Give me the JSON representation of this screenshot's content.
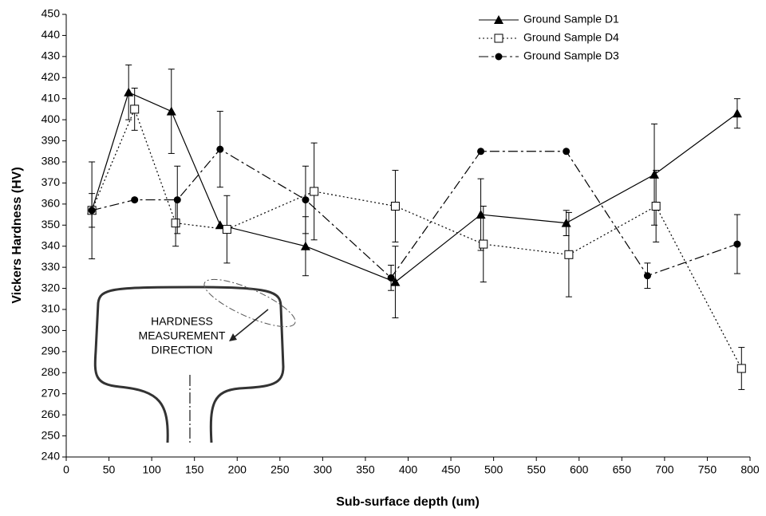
{
  "chart_data": {
    "type": "line",
    "xlabel": "Sub-surface depth (um)",
    "ylabel": "Vickers Hardness  (HV)",
    "xlim": [
      0,
      800
    ],
    "xticks": [
      0,
      50,
      100,
      150,
      200,
      250,
      300,
      350,
      400,
      450,
      500,
      550,
      600,
      650,
      700,
      750,
      800
    ],
    "ylim": [
      240,
      450
    ],
    "yticks": [
      240,
      250,
      260,
      270,
      280,
      290,
      300,
      310,
      320,
      330,
      340,
      350,
      360,
      370,
      380,
      390,
      400,
      410,
      420,
      430,
      440,
      450
    ],
    "annotation_lines": [
      "HARDNESS",
      "MEASUREMENT",
      "DIRECTION"
    ],
    "legend": "top-right",
    "series": [
      {
        "name": "Ground Sample D1",
        "color": "#000000",
        "marker": "triangle",
        "line_style": "solid",
        "x": [
          30,
          73,
          123,
          180,
          280,
          385,
          485,
          585,
          688,
          785
        ],
        "values": [
          357,
          413,
          404,
          350,
          340,
          323,
          355,
          351,
          374,
          403
        ],
        "errors": [
          null,
          13,
          20,
          null,
          14,
          17,
          17,
          6,
          24,
          7
        ]
      },
      {
        "name": "Ground Sample D4",
        "color": "#000000",
        "marker": "square",
        "line_style": "dotted",
        "x": [
          30,
          80,
          128,
          188,
          290,
          385,
          488,
          588,
          690,
          790
        ],
        "values": [
          357,
          405,
          351,
          348,
          366,
          359,
          341,
          336,
          359,
          282
        ],
        "errors": [
          23,
          10,
          11,
          16,
          23,
          17,
          18,
          20,
          17,
          10
        ]
      },
      {
        "name": "Ground Sample D3",
        "color": "#000000",
        "marker": "circle",
        "line_style": "dashdot",
        "x": [
          30,
          80,
          130,
          180,
          280,
          380,
          485,
          585,
          680,
          785
        ],
        "values": [
          357,
          362,
          362,
          386,
          362,
          325,
          385,
          385,
          326,
          341
        ],
        "errors": [
          8,
          null,
          16,
          18,
          16,
          6,
          null,
          null,
          6,
          14
        ]
      }
    ]
  }
}
